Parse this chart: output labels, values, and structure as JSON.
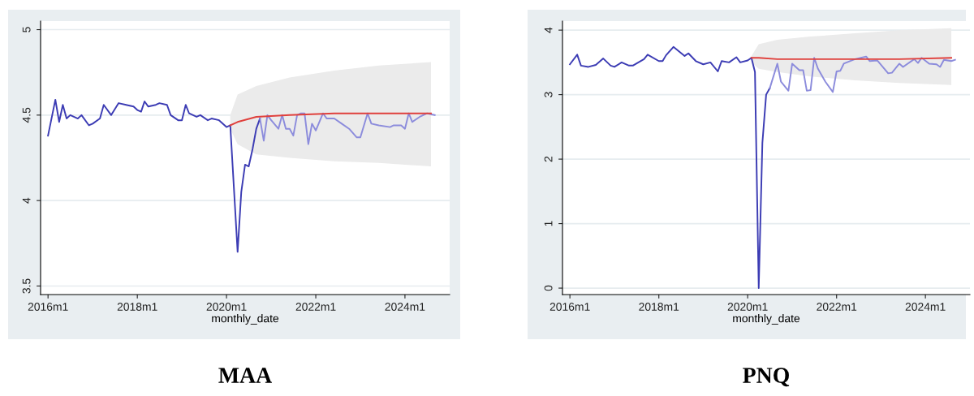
{
  "chart_data": [
    {
      "type": "line",
      "title": "MAA",
      "xlabel": "monthly_date",
      "xlim": [
        "2015-11",
        "2025-01"
      ],
      "ylim": [
        3.45,
        5.05
      ],
      "yticks": [
        3.5,
        4,
        4.5,
        5
      ],
      "grid": "y",
      "xticks": [
        {
          "value": "2016-01",
          "label": "2016m1"
        },
        {
          "value": "2018-01",
          "label": "2018m1"
        },
        {
          "value": "2020-01",
          "label": "2020m1"
        },
        {
          "value": "2022-01",
          "label": "2022m1"
        },
        {
          "value": "2024-01",
          "label": "2024m1"
        }
      ],
      "series": [
        {
          "color": "#3c3cb4",
          "x": [
            "2016-01",
            "2016-03",
            "2016-04",
            "2016-05",
            "2016-06",
            "2016-07",
            "2016-09",
            "2016-10",
            "2016-12",
            "2017-01",
            "2017-03",
            "2017-04",
            "2017-06",
            "2017-08",
            "2017-10",
            "2017-12",
            "2018-01",
            "2018-02",
            "2018-03",
            "2018-04",
            "2018-06",
            "2018-07",
            "2018-09",
            "2018-10",
            "2018-12",
            "2019-01",
            "2019-02",
            "2019-03",
            "2019-05",
            "2019-06",
            "2019-08",
            "2019-09",
            "2019-11",
            "2020-01",
            "2020-02",
            "2020-04",
            "2020-05",
            "2020-06",
            "2020-07",
            "2020-08",
            "2020-09",
            "2020-10"
          ],
          "values": [
            4.38,
            4.59,
            4.46,
            4.56,
            4.48,
            4.5,
            4.48,
            4.5,
            4.44,
            4.45,
            4.48,
            4.56,
            4.5,
            4.57,
            4.56,
            4.55,
            4.53,
            4.52,
            4.58,
            4.55,
            4.56,
            4.57,
            4.56,
            4.5,
            4.47,
            4.47,
            4.56,
            4.51,
            4.49,
            4.5,
            4.47,
            4.48,
            4.47,
            4.43,
            4.44,
            3.7,
            4.05,
            4.21,
            4.2,
            4.3,
            4.42,
            4.48
          ]
        },
        {
          "color": "#8c8cdc",
          "x": [
            "2020-10",
            "2020-11",
            "2020-12",
            "2021-01",
            "2021-03",
            "2021-04",
            "2021-05",
            "2021-06",
            "2021-07",
            "2021-08",
            "2021-09",
            "2021-10",
            "2021-11",
            "2021-12",
            "2022-01",
            "2022-03",
            "2022-04",
            "2022-06",
            "2022-08",
            "2022-10",
            "2022-12",
            "2023-01",
            "2023-03",
            "2023-04",
            "2023-06",
            "2023-09",
            "2023-10",
            "2023-12",
            "2024-01",
            "2024-02",
            "2024-03",
            "2024-05",
            "2024-07",
            "2024-09"
          ],
          "values": [
            4.48,
            4.35,
            4.5,
            4.47,
            4.42,
            4.5,
            4.42,
            4.42,
            4.38,
            4.5,
            4.51,
            4.51,
            4.33,
            4.45,
            4.41,
            4.51,
            4.48,
            4.48,
            4.45,
            4.42,
            4.37,
            4.37,
            4.51,
            4.45,
            4.44,
            4.43,
            4.44,
            4.44,
            4.42,
            4.51,
            4.46,
            4.49,
            4.51,
            4.5
          ]
        },
        {
          "color": "#e0403c",
          "x": [
            "2020-02",
            "2020-04",
            "2020-09",
            "2021-06",
            "2022-06",
            "2023-06",
            "2024-08"
          ],
          "values": [
            4.44,
            4.46,
            4.49,
            4.5,
            4.51,
            4.51,
            4.51
          ],
          "lower": [
            4.42,
            4.33,
            4.27,
            4.25,
            4.23,
            4.22,
            4.2
          ],
          "upper": [
            4.5,
            4.62,
            4.67,
            4.72,
            4.76,
            4.79,
            4.81
          ]
        }
      ]
    },
    {
      "type": "line",
      "title": "PNQ",
      "xlabel": "monthly_date",
      "xlim": [
        "2015-11",
        "2025-01"
      ],
      "ylim": [
        -0.1,
        4.14
      ],
      "yticks": [
        0,
        1,
        2,
        3,
        4
      ],
      "grid": "y",
      "xticks": [
        {
          "value": "2016-01",
          "label": "2016m1"
        },
        {
          "value": "2018-01",
          "label": "2018m1"
        },
        {
          "value": "2020-01",
          "label": "2020m1"
        },
        {
          "value": "2022-01",
          "label": "2022m1"
        },
        {
          "value": "2024-01",
          "label": "2024m1"
        }
      ],
      "series": [
        {
          "color": "#3c3cb4",
          "x": [
            "2016-01",
            "2016-03",
            "2016-04",
            "2016-06",
            "2016-08",
            "2016-10",
            "2016-12",
            "2017-01",
            "2017-03",
            "2017-05",
            "2017-06",
            "2017-09",
            "2017-10",
            "2018-01",
            "2018-02",
            "2018-03",
            "2018-05",
            "2018-08",
            "2018-09",
            "2018-11",
            "2019-01",
            "2019-03",
            "2019-05",
            "2019-06",
            "2019-08",
            "2019-10",
            "2019-11",
            "2020-01",
            "2020-02",
            "2020-03",
            "2020-04",
            "2020-05",
            "2020-06",
            "2020-07"
          ],
          "values": [
            3.47,
            3.62,
            3.45,
            3.43,
            3.46,
            3.56,
            3.45,
            3.43,
            3.5,
            3.45,
            3.45,
            3.55,
            3.62,
            3.52,
            3.52,
            3.61,
            3.74,
            3.6,
            3.64,
            3.52,
            3.47,
            3.5,
            3.36,
            3.52,
            3.5,
            3.58,
            3.5,
            3.53,
            3.57,
            3.35,
            0,
            2.25,
            3.0,
            3.1
          ]
        },
        {
          "color": "#8c8cdc",
          "x": [
            "2020-07",
            "2020-09",
            "2020-10",
            "2020-12",
            "2021-01",
            "2021-03",
            "2021-04",
            "2021-05",
            "2021-06",
            "2021-07",
            "2021-08",
            "2021-10",
            "2021-12",
            "2022-01",
            "2022-02",
            "2022-03",
            "2022-06",
            "2022-09",
            "2022-10",
            "2022-12",
            "2023-03",
            "2023-04",
            "2023-06",
            "2023-07",
            "2023-10",
            "2023-11",
            "2023-12",
            "2024-02",
            "2024-04",
            "2024-05",
            "2024-06",
            "2024-08",
            "2024-09"
          ],
          "values": [
            3.1,
            3.48,
            3.2,
            3.06,
            3.48,
            3.38,
            3.38,
            3.06,
            3.07,
            3.57,
            3.4,
            3.2,
            3.04,
            3.36,
            3.37,
            3.48,
            3.55,
            3.59,
            3.52,
            3.53,
            3.33,
            3.34,
            3.48,
            3.43,
            3.55,
            3.49,
            3.57,
            3.48,
            3.47,
            3.43,
            3.54,
            3.52,
            3.54
          ]
        },
        {
          "color": "#e0403c",
          "x": [
            "2020-02",
            "2020-04",
            "2020-09",
            "2021-06",
            "2022-06",
            "2023-06",
            "2024-08"
          ],
          "values": [
            3.57,
            3.57,
            3.55,
            3.55,
            3.55,
            3.55,
            3.57
          ],
          "lower": [
            3.5,
            3.4,
            3.35,
            3.28,
            3.22,
            3.18,
            3.15
          ],
          "upper": [
            3.6,
            3.78,
            3.85,
            3.9,
            3.95,
            4.0,
            4.03
          ]
        }
      ]
    }
  ]
}
